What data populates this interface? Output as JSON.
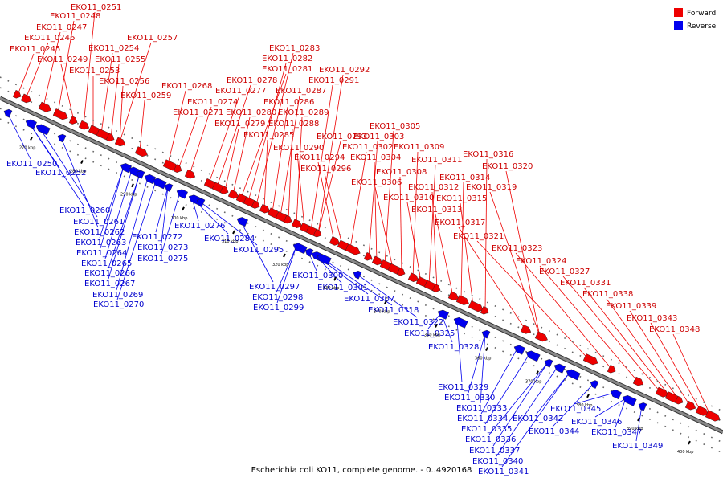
{
  "caption": "Escherichia coli KO11, complete genome. - 0..4920168",
  "legend": [
    {
      "label": "Forward",
      "color": "#ee0000"
    },
    {
      "label": "Reverse",
      "color": "#0000ee"
    }
  ],
  "colors": {
    "forward": "#ee0000",
    "reverse": "#0000ee",
    "backbone": "#888888"
  },
  "ticks": [
    "270 kbp",
    "280 kbp",
    "290 kbp",
    "300 kbp",
    "310 kbp",
    "320 kbp",
    "330 kbp",
    "340 kbp",
    "350 kbp",
    "360 kbp",
    "370 kbp",
    "380 kbp",
    "390 kbp",
    "400 kbp"
  ],
  "forward_labels": [
    "EKO11_0245",
    "EKO11_0246",
    "EKO11_0247",
    "EKO11_0248",
    "EKO11_0249",
    "EKO11_0251",
    "EKO11_0253",
    "EKO11_0254",
    "EKO11_0255",
    "EKO11_0256",
    "EKO11_0257",
    "EKO11_0259",
    "EKO11_0268",
    "EKO11_0271",
    "EKO11_0274",
    "EKO11_0277",
    "EKO11_0278",
    "EKO11_0279",
    "EKO11_0280",
    "EKO11_0281",
    "EKO11_0282",
    "EKO11_0283",
    "EKO11_0285",
    "EKO11_0286",
    "EKO11_0287",
    "EKO11_0288",
    "EKO11_0289",
    "EKO11_0290",
    "EKO11_0291",
    "EKO11_0292",
    "EKO11_0293",
    "EKO11_0294",
    "EKO11_0296",
    "EKO11_0302",
    "EKO11_0303",
    "EKO11_0304",
    "EKO11_0305",
    "EKO11_0306",
    "EKO11_0308",
    "EKO11_0309",
    "EKO11_0310",
    "EKO11_0311",
    "EKO11_0312",
    "EKO11_0313",
    "EKO11_0314",
    "EKO11_0315",
    "EKO11_0316",
    "EKO11_0317",
    "EKO11_0319",
    "EKO11_0320",
    "EKO11_0321",
    "EKO11_0323",
    "EKO11_0324",
    "EKO11_0327",
    "EKO11_0331",
    "EKO11_0338",
    "EKO11_0339",
    "EKO11_0343",
    "EKO11_0348"
  ],
  "reverse_labels": [
    "EKO11_0250",
    "EKO11_0252",
    "EKO11_0260",
    "EKO11_0261",
    "EKO11_0262",
    "EKO11_0263",
    "EKO11_0264",
    "EKO11_0265",
    "EKO11_0266",
    "EKO11_0267",
    "EKO11_0269",
    "EKO11_0270",
    "EKO11_0272",
    "EKO11_0273",
    "EKO11_0275",
    "EKO11_0276",
    "EKO11_0284",
    "EKO11_0295",
    "EKO11_0297",
    "EKO11_0298",
    "EKO11_0299",
    "EKO11_0300",
    "EKO11_0301",
    "EKO11_0307",
    "EKO11_0318",
    "EKO11_0322",
    "EKO11_0325",
    "EKO11_0328",
    "EKO11_0329",
    "EKO11_0330",
    "EKO11_0333",
    "EKO11_0334",
    "EKO11_0335",
    "EKO11_0336",
    "EKO11_0337",
    "EKO11_0340",
    "EKO11_0341",
    "EKO11_0342",
    "EKO11_0344",
    "EKO11_0345",
    "EKO11_0346",
    "EKO11_0347",
    "EKO11_0349"
  ]
}
